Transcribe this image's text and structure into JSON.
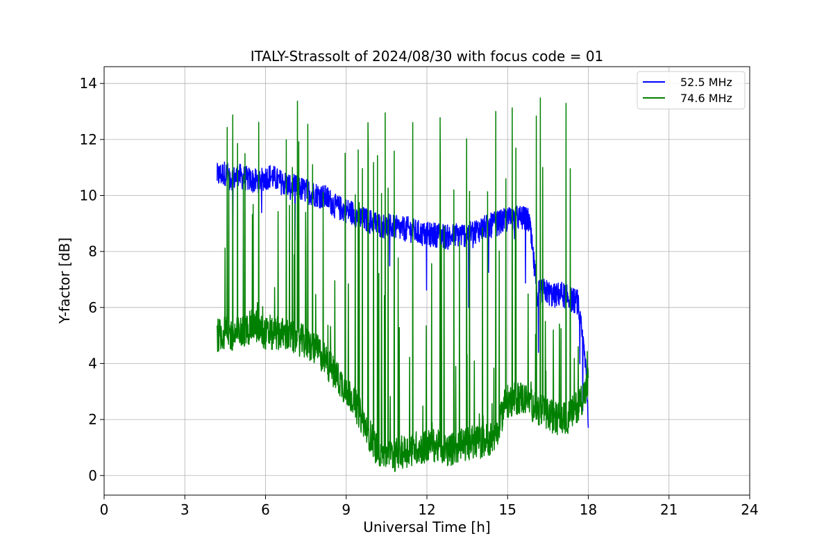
{
  "chart_data": {
    "type": "line",
    "title": "ITALY-Strassolt of 2024/08/30 with focus code = 01",
    "xlabel": "Universal Time [h]",
    "ylabel": "Y-factor [dB]",
    "xlim": [
      0,
      24
    ],
    "ylim": [
      -0.7,
      14.6
    ],
    "xticks": [
      0,
      3,
      6,
      9,
      12,
      15,
      18,
      21,
      24
    ],
    "yticks": [
      0,
      2,
      4,
      6,
      8,
      10,
      12,
      14
    ],
    "grid": true,
    "legend_position": "top-right",
    "series": [
      {
        "name": "52.5 MHz",
        "color": "#0000ff",
        "x": [
          4.2,
          4.5,
          4.8,
          5.0,
          5.3,
          5.6,
          5.9,
          6.2,
          6.5,
          6.8,
          7.1,
          7.4,
          7.7,
          8.0,
          8.3,
          8.6,
          8.9,
          9.2,
          9.5,
          9.8,
          10.1,
          10.4,
          10.7,
          11.0,
          11.3,
          11.6,
          11.9,
          12.2,
          12.5,
          12.8,
          13.1,
          13.4,
          13.7,
          14.0,
          14.3,
          14.6,
          14.9,
          15.2,
          15.5,
          15.8,
          16.1,
          16.4,
          16.7,
          17.0,
          17.3,
          17.6,
          17.9,
          18.0
        ],
        "y": [
          10.7,
          10.8,
          10.6,
          10.7,
          10.6,
          10.5,
          10.6,
          10.7,
          10.5,
          10.4,
          10.3,
          10.2,
          10.1,
          10.0,
          9.9,
          9.6,
          9.5,
          9.4,
          9.2,
          9.1,
          9.0,
          8.9,
          8.9,
          8.8,
          8.8,
          8.7,
          8.6,
          8.6,
          8.6,
          8.5,
          8.6,
          8.6,
          8.7,
          8.8,
          8.9,
          9.0,
          9.1,
          9.2,
          9.2,
          9.1,
          6.5,
          6.6,
          6.4,
          6.5,
          6.3,
          6.2,
          4.0,
          2.0
        ]
      },
      {
        "name": "74.6 MHz",
        "color": "#008000",
        "x": [
          4.2,
          4.5,
          4.8,
          5.0,
          5.3,
          5.6,
          5.9,
          6.2,
          6.5,
          6.8,
          7.1,
          7.4,
          7.7,
          8.0,
          8.3,
          8.6,
          8.9,
          9.2,
          9.5,
          9.8,
          10.1,
          10.4,
          10.7,
          11.0,
          11.3,
          11.6,
          11.9,
          12.2,
          12.5,
          12.8,
          13.1,
          13.4,
          13.7,
          14.0,
          14.3,
          14.6,
          14.9,
          15.2,
          15.5,
          15.8,
          16.1,
          16.4,
          16.7,
          17.0,
          17.3,
          17.6,
          17.9,
          18.0
        ],
        "y": [
          5.0,
          5.1,
          5.0,
          5.1,
          5.2,
          5.4,
          5.1,
          5.0,
          5.1,
          5.0,
          4.9,
          4.8,
          4.6,
          4.4,
          4.0,
          3.6,
          3.2,
          2.8,
          2.2,
          1.6,
          1.0,
          0.8,
          0.7,
          0.8,
          0.9,
          1.0,
          1.0,
          1.1,
          1.0,
          0.9,
          1.0,
          1.1,
          1.2,
          1.2,
          1.3,
          1.4,
          2.6,
          2.7,
          2.8,
          2.6,
          2.4,
          2.2,
          2.1,
          2.0,
          2.1,
          2.5,
          3.0,
          3.4
        ]
      }
    ]
  }
}
